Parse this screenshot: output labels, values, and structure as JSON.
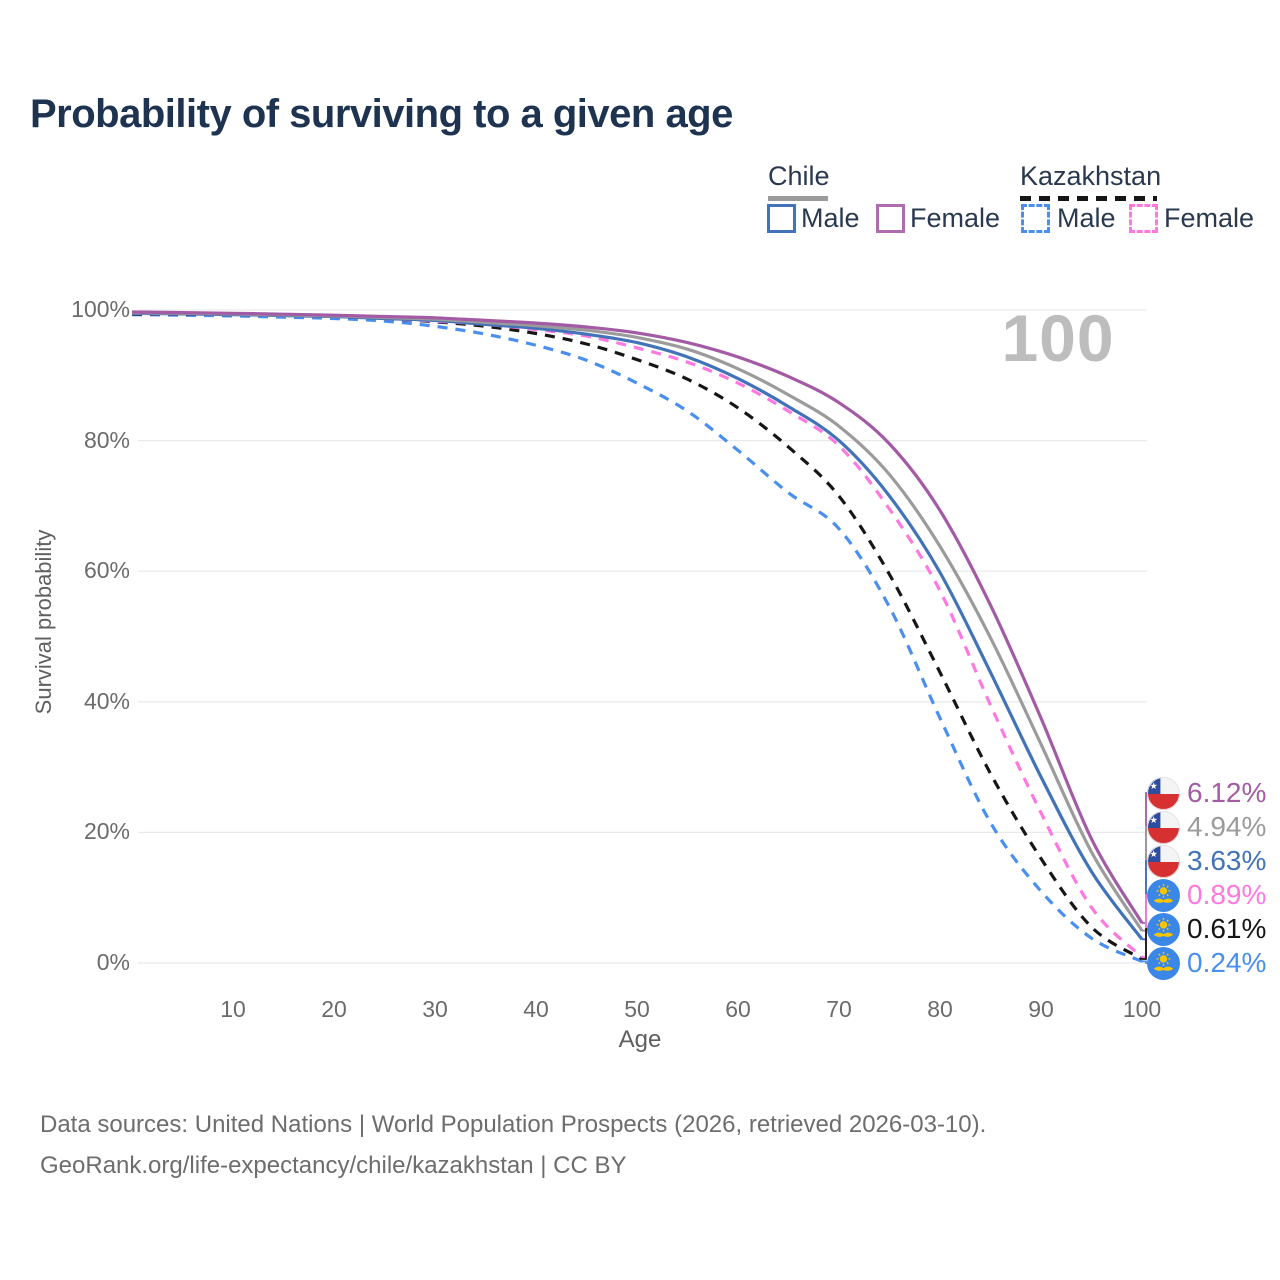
{
  "title": "Probability of surviving to a given age",
  "watermark": "100",
  "legend": {
    "groups": [
      {
        "name": "Chile",
        "line_style": "solid",
        "underline_color": "#9b9b9b",
        "items": [
          {
            "label": "Male",
            "color": "#4273b8"
          },
          {
            "label": "Female",
            "color": "#b06cae"
          }
        ]
      },
      {
        "name": "Kazakhstan",
        "line_style": "dashed",
        "underline_color": "#161616",
        "items": [
          {
            "label": "Male",
            "color": "#4a8ff0"
          },
          {
            "label": "Female",
            "color": "#ff78e0"
          }
        ]
      }
    ]
  },
  "chart_data": {
    "type": "line",
    "title": "Probability of surviving to a given age",
    "xlabel": "Age",
    "ylabel": "Survival probability",
    "unit": "%",
    "xlim": [
      0,
      100
    ],
    "ylim": [
      0,
      100
    ],
    "grid": "horizontal",
    "x_ticks": [
      {
        "v": 10,
        "label": "10"
      },
      {
        "v": 20,
        "label": "20"
      },
      {
        "v": 30,
        "label": "30"
      },
      {
        "v": 40,
        "label": "40"
      },
      {
        "v": 50,
        "label": "50"
      },
      {
        "v": 60,
        "label": "60"
      },
      {
        "v": 70,
        "label": "70"
      },
      {
        "v": 80,
        "label": "80"
      },
      {
        "v": 90,
        "label": "90"
      },
      {
        "v": 100,
        "label": "100"
      }
    ],
    "y_ticks": [
      {
        "v": 0,
        "label": "0%"
      },
      {
        "v": 20,
        "label": "20%"
      },
      {
        "v": 40,
        "label": "40%"
      },
      {
        "v": 60,
        "label": "60%"
      },
      {
        "v": 80,
        "label": "80%"
      },
      {
        "v": 100,
        "label": "100%"
      }
    ],
    "x": [
      0,
      5,
      10,
      15,
      20,
      25,
      30,
      35,
      40,
      45,
      50,
      55,
      60,
      65,
      70,
      75,
      80,
      85,
      90,
      95,
      100
    ],
    "series": [
      {
        "country": "Kazakhstan",
        "sex": "Male",
        "color": "#4a8ff0",
        "dash": true,
        "flag": "kazakhstan",
        "end_label": "0.24%",
        "values": [
          99.3,
          99.2,
          99.1,
          98.9,
          98.7,
          98.3,
          97.5,
          96.3,
          94.6,
          92.3,
          88.8,
          84.5,
          78.5,
          72.0,
          66.5,
          54.5,
          37.5,
          21.5,
          11.0,
          3.8,
          0.24
        ]
      },
      {
        "country": "Kazakhstan",
        "sex": "Both sexes",
        "color": "#161616",
        "dash": true,
        "flag": "kazakhstan",
        "end_label": "0.61%",
        "values": [
          99.4,
          99.35,
          99.3,
          99.2,
          99.0,
          98.7,
          98.2,
          97.5,
          96.4,
          94.8,
          92.4,
          89.4,
          85.0,
          79.0,
          71.5,
          59.5,
          44.5,
          29.0,
          16.0,
          5.5,
          0.61
        ]
      },
      {
        "country": "Kazakhstan",
        "sex": "Female",
        "color": "#ff78e0",
        "dash": true,
        "flag": "kazakhstan",
        "end_label": "0.89%",
        "values": [
          99.5,
          99.4,
          99.3,
          99.15,
          99.0,
          98.7,
          98.3,
          97.8,
          97.0,
          96.0,
          94.2,
          92.0,
          88.8,
          84.5,
          79.2,
          69.5,
          57.0,
          39.5,
          23.0,
          8.5,
          0.89
        ]
      },
      {
        "country": "Chile",
        "sex": "Male",
        "color": "#4273b8",
        "dash": false,
        "flag": "chile",
        "end_label": "3.63%",
        "values": [
          99.5,
          99.4,
          99.3,
          99.15,
          99.0,
          98.7,
          98.4,
          97.8,
          97.2,
          96.3,
          95.0,
          92.8,
          89.5,
          85.2,
          80.0,
          71.5,
          59.8,
          44.5,
          28.5,
          14.0,
          3.63
        ]
      },
      {
        "country": "Chile",
        "sex": "Both sexes",
        "color": "#9b9b9b",
        "dash": false,
        "flag": "chile",
        "end_label": "4.94%",
        "values": [
          99.6,
          99.5,
          99.4,
          99.25,
          99.1,
          98.85,
          98.6,
          98.1,
          97.6,
          96.9,
          95.8,
          94.0,
          91.0,
          87.0,
          82.2,
          74.8,
          63.8,
          49.8,
          33.5,
          17.0,
          4.94
        ]
      },
      {
        "country": "Chile",
        "sex": "Female",
        "color": "#a25ba4",
        "dash": false,
        "flag": "chile",
        "end_label": "6.12%",
        "values": [
          99.7,
          99.6,
          99.5,
          99.35,
          99.2,
          99.0,
          98.8,
          98.4,
          98.0,
          97.4,
          96.5,
          95.0,
          92.8,
          89.8,
          85.8,
          79.5,
          69.3,
          54.8,
          37.5,
          19.0,
          6.12
        ]
      }
    ]
  },
  "footer": {
    "line1": "Data sources: United Nations | World Population Prospects (2026, retrieved 2026-03-10).",
    "line2": "GeoRank.org/life-expectancy/chile/kazakhstan | CC BY"
  }
}
